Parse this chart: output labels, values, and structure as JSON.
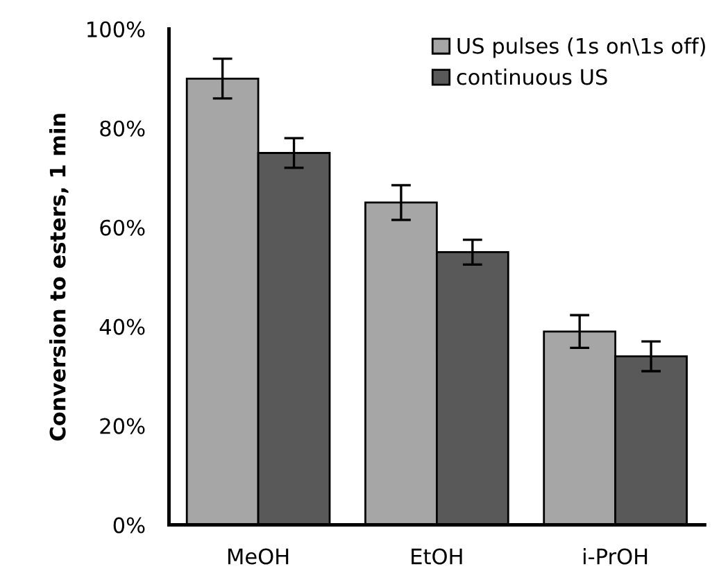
{
  "chart_data": {
    "type": "bar",
    "ylabel": "Conversion to esters, 1 min",
    "categories": [
      "MeOH",
      "EtOH",
      "i-PrOH"
    ],
    "series": [
      {
        "name": "US pulses (1s on\\1s off)",
        "color": "#a6a6a6",
        "values": [
          90,
          65,
          39
        ],
        "errors": [
          4,
          3.5,
          3.3
        ]
      },
      {
        "name": "continuous US",
        "color": "#595959",
        "values": [
          75,
          55,
          34
        ],
        "errors": [
          3,
          2.5,
          3
        ]
      }
    ],
    "ylim": [
      0,
      100
    ],
    "yticks": [
      {
        "value": 0,
        "label": "0%"
      },
      {
        "value": 20,
        "label": "20%"
      },
      {
        "value": 40,
        "label": "40%"
      },
      {
        "value": 60,
        "label": "60%"
      },
      {
        "value": 80,
        "label": "80%"
      },
      {
        "value": 100,
        "label": "100%"
      }
    ],
    "grid": false,
    "legend": "top right"
  }
}
